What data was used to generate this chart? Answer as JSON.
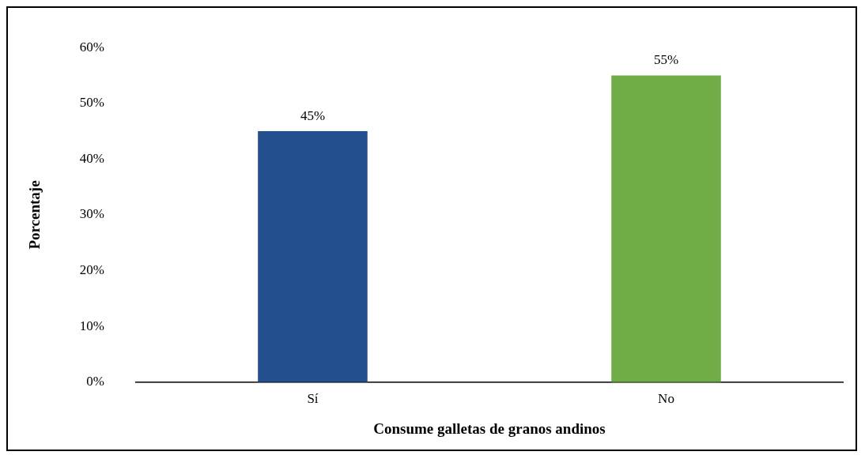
{
  "chart_data": {
    "type": "bar",
    "xlabel": "Consume galletas de granos andinos",
    "ylabel": "Porcentaje",
    "categories": [
      "Sí",
      "No"
    ],
    "values": [
      45,
      55
    ],
    "colors": [
      "#234f8e",
      "#70ad47"
    ],
    "value_labels": [
      "45%",
      "55%"
    ],
    "ylim": [
      0,
      60
    ],
    "yticks": [
      {
        "value": 0,
        "label": "0%"
      },
      {
        "value": 10,
        "label": "10%"
      },
      {
        "value": 20,
        "label": "20%"
      },
      {
        "value": 30,
        "label": "30%"
      },
      {
        "value": 40,
        "label": "40%"
      },
      {
        "value": 50,
        "label": "50%"
      },
      {
        "value": 60,
        "label": "60%"
      }
    ],
    "grid": false,
    "legend": false
  }
}
